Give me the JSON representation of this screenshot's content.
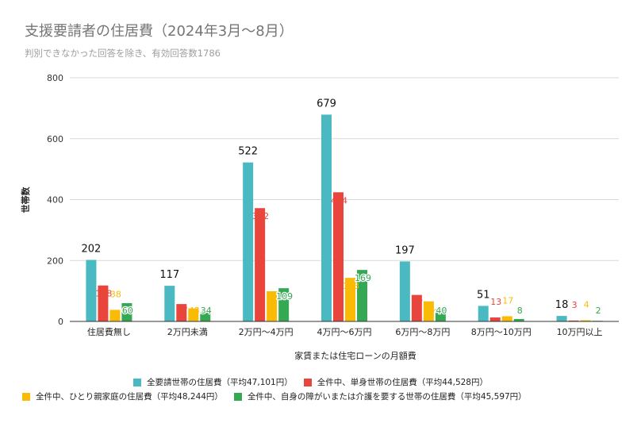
{
  "chart_data": {
    "type": "bar",
    "title": "支援要請者の住居費（2024年3月～8月）",
    "subtitle": "判別できなかった回答を除き、有効回答数1786",
    "xlabel": "家賃または住宅ローンの月額費",
    "ylabel": "世帯数",
    "ylim": [
      0,
      800
    ],
    "yticks": [
      "0",
      "200",
      "400",
      "600",
      "800"
    ],
    "grid": true,
    "legend_position": "bottom",
    "categories": [
      "住居費無し",
      "2万円未満",
      "2万円～4万円",
      "4万円～6万円",
      "6万円～8万円",
      "8万円～10万円",
      "10万円以上"
    ],
    "series": [
      {
        "name": "全要請世帯の住居費（平均47,101円）",
        "color": "#4ab9c2",
        "label_color": "#111111",
        "values": [
          202,
          117,
          522,
          679,
          197,
          51,
          18
        ]
      },
      {
        "name": "全件中、単身世帯の住居費（平均44,528円）",
        "color": "#e8453c",
        "label_color": "#e8453c",
        "values": [
          118,
          57,
          372,
          424,
          87,
          13,
          3
        ]
      },
      {
        "name": "全件中、ひとり親家庭の住居費（平均48,244円）",
        "color": "#f9bb05",
        "label_color": "#f9bb05",
        "values": [
          38,
          43,
          99,
          143,
          66,
          17,
          4
        ]
      },
      {
        "name": "全件中、自身の障がいまたは介護を要する世帯の住居費（平均45,597円）",
        "color": "#35a853",
        "label_color": "#35a853",
        "values": [
          60,
          34,
          109,
          169,
          40,
          8,
          2
        ]
      }
    ]
  }
}
